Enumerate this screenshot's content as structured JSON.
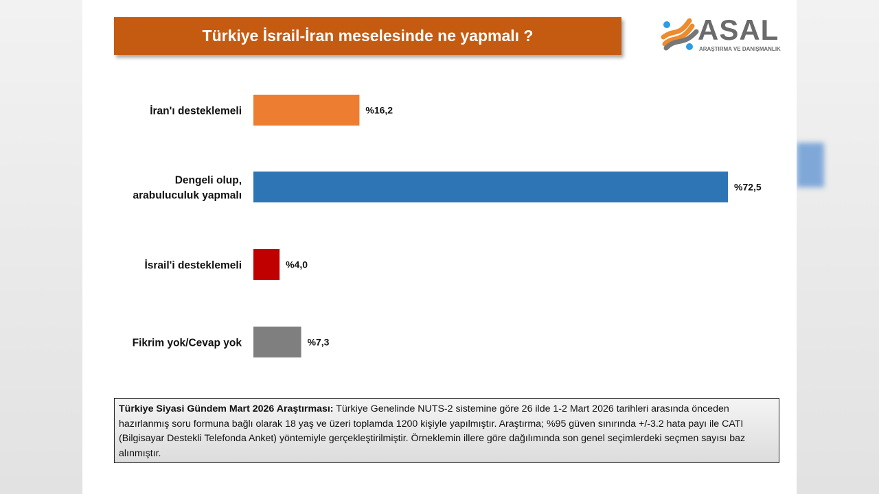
{
  "title": "Türkiye İsrail-İran meselesinde ne yapmalı ?",
  "logo": {
    "word": "ASAL",
    "subtitle": "ARAŞTIRMA VE DANIŞMANLIK"
  },
  "chart_data": {
    "type": "bar",
    "orientation": "horizontal",
    "title": "Türkiye İsrail-İran meselesinde ne yapmalı ?",
    "categories": [
      "İran'ı desteklemeli",
      "Dengeli olup, arabuluculuk yapmalı",
      "İsrail'i desteklemeli",
      "Fikrim yok/Cevap yok"
    ],
    "category_lines": [
      [
        "İran'ı desteklemeli"
      ],
      [
        "Dengeli olup,",
        "arabuluculuk yapmalı"
      ],
      [
        "İsrail'i desteklemeli"
      ],
      [
        "Fikrim yok/Cevap yok"
      ]
    ],
    "values": [
      16.2,
      72.5,
      4.0,
      7.3
    ],
    "data_labels": [
      "%16,2",
      "%72,5",
      "%4,0",
      "%7,3"
    ],
    "colors": [
      "#ED7D31",
      "#2E75B6",
      "#C00000",
      "#7F7F7F"
    ],
    "xlim": [
      0,
      72.5
    ],
    "grid": false,
    "unit": "%"
  },
  "footnote": {
    "bold": "Türkiye Siyasi Gündem Mart 2026 Araştırması:",
    "text": " Türkiye Genelinde NUTS-2 sistemine göre 26 ilde 1-2 Mart 2026 tarihleri arasında önceden hazırlanmış soru formuna bağlı olarak 18 yaş ve üzeri toplamda 1200 kişiyle yapılmıştır. Araştırma; %95 güven sınırında +/-3.2 hata payı ile CATI (Bilgisayar Destekli Telefonda Anket) yöntemiyle gerçekleştirilmiştir. Örneklemin illere göre dağılımında son genel seçimlerdeki seçmen sayısı baz alınmıştır."
  }
}
